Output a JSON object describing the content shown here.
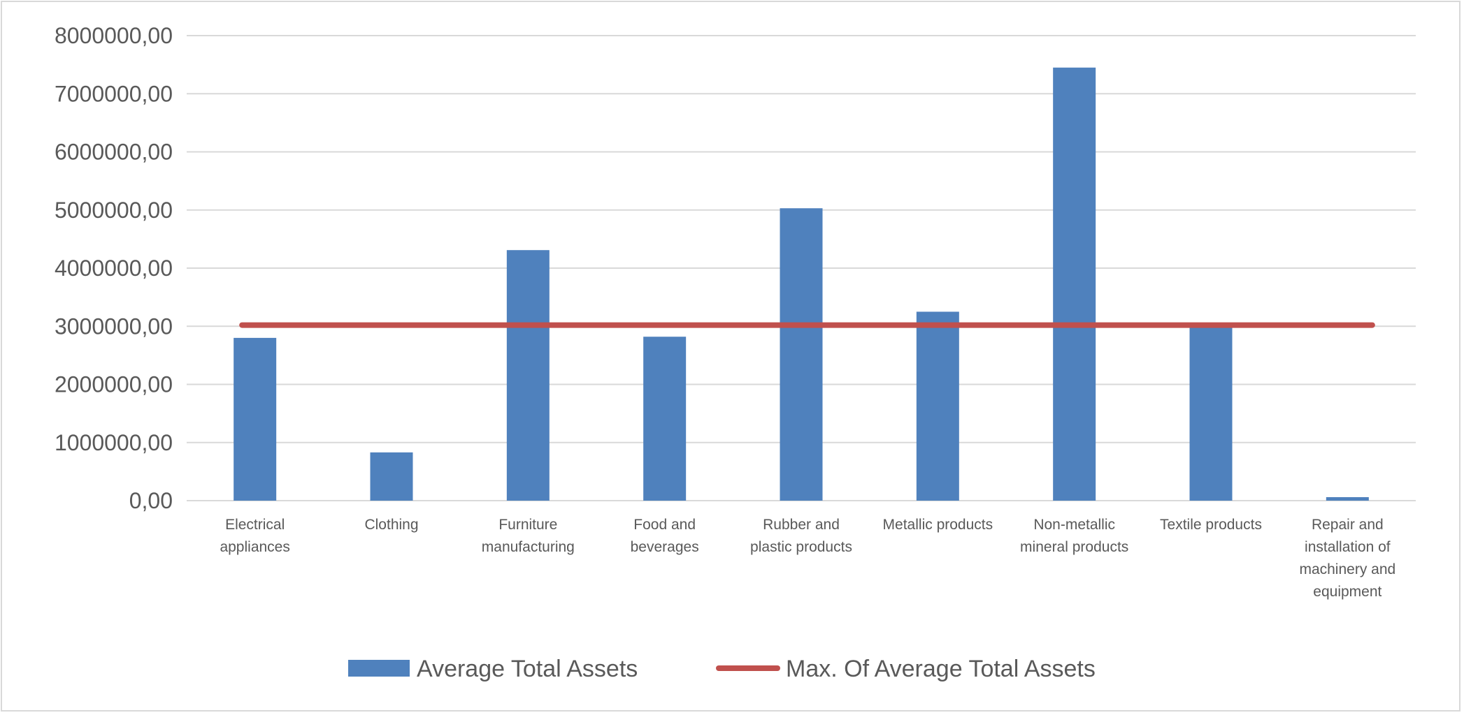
{
  "chart_data": {
    "type": "bar",
    "title": "",
    "xlabel": "",
    "ylabel": "",
    "ylim": [
      0,
      8000000
    ],
    "grid": true,
    "legend_position": "bottom",
    "yticks": [
      "0,00",
      "1000000,00",
      "2000000,00",
      "3000000,00",
      "4000000,00",
      "5000000,00",
      "6000000,00",
      "7000000,00",
      "8000000,00"
    ],
    "categories": [
      [
        "Electrical",
        "appliances"
      ],
      [
        "Clothing"
      ],
      [
        "Furniture",
        "manufacturing"
      ],
      [
        "Food and",
        "beverages"
      ],
      [
        "Rubber and",
        "plastic products"
      ],
      [
        "Metallic products"
      ],
      [
        "Non-metallic",
        "mineral products"
      ],
      [
        "Textile products"
      ],
      [
        "Repair and",
        "installation of",
        "machinery and",
        "equipment"
      ]
    ],
    "series": [
      {
        "name": "Average Total Assets",
        "type": "bar",
        "color": "#4f81bd",
        "values": [
          2800000,
          830000,
          4310000,
          2820000,
          5030000,
          3250000,
          7450000,
          3000000,
          60000
        ]
      },
      {
        "name": "Max. Of Average Total Assets",
        "type": "line",
        "color": "#c0504d",
        "values": [
          3020000,
          3020000,
          3020000,
          3020000,
          3020000,
          3020000,
          3020000,
          3020000,
          3020000
        ]
      }
    ]
  }
}
